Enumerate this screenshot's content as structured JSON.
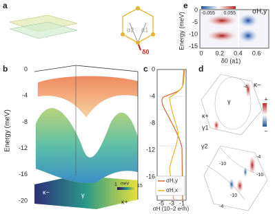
{
  "panels": {
    "a": {
      "label": "a",
      "alpha2": "α2",
      "alpha1": "α1",
      "delta0": "δ0"
    },
    "e": {
      "label": "e",
      "colorbar_min": "-0.055",
      "colorbar_max": "0.055",
      "title": "σH,y",
      "ylabel": "Energy (meV)",
      "yticks": [
        "0",
        "-5",
        "-10",
        "-15"
      ],
      "xticks": [
        "0",
        "0.2",
        "0.4",
        "0.6"
      ],
      "xlabel": "δ0 (a1)"
    },
    "b": {
      "label": "b",
      "ylabel": "Energy (meV)",
      "yticks": [
        "0",
        "-4",
        "-8",
        "-12",
        "-16",
        "-20"
      ],
      "kappa_minus": "κ−",
      "gamma": "γ",
      "kappa_plus": "κ+",
      "colorbar_min": "1",
      "colorbar_unit": "meV",
      "colorbar_max": "15"
    },
    "c": {
      "label": "c",
      "yticks": [
        "0",
        "-4",
        "-8",
        "-12",
        "-16"
      ],
      "xticks": [
        "-5",
        "-3",
        "-1"
      ],
      "xlabel": "σH (10−2 e²/h)",
      "legend": [
        "σH,y",
        "σH,x"
      ]
    },
    "d": {
      "label": "d",
      "kappa_minus": "κ−",
      "gamma": "γ",
      "kappa_plus": "κ+",
      "gamma1": "γ1",
      "gamma2": "γ2",
      "contours_top": [
        "-4"
      ],
      "contours_bottom": [
        "-4",
        "-10",
        "-10",
        "-10",
        "-4"
      ],
      "colorbar_plus": "+",
      "colorbar_minus": "−"
    }
  }
}
